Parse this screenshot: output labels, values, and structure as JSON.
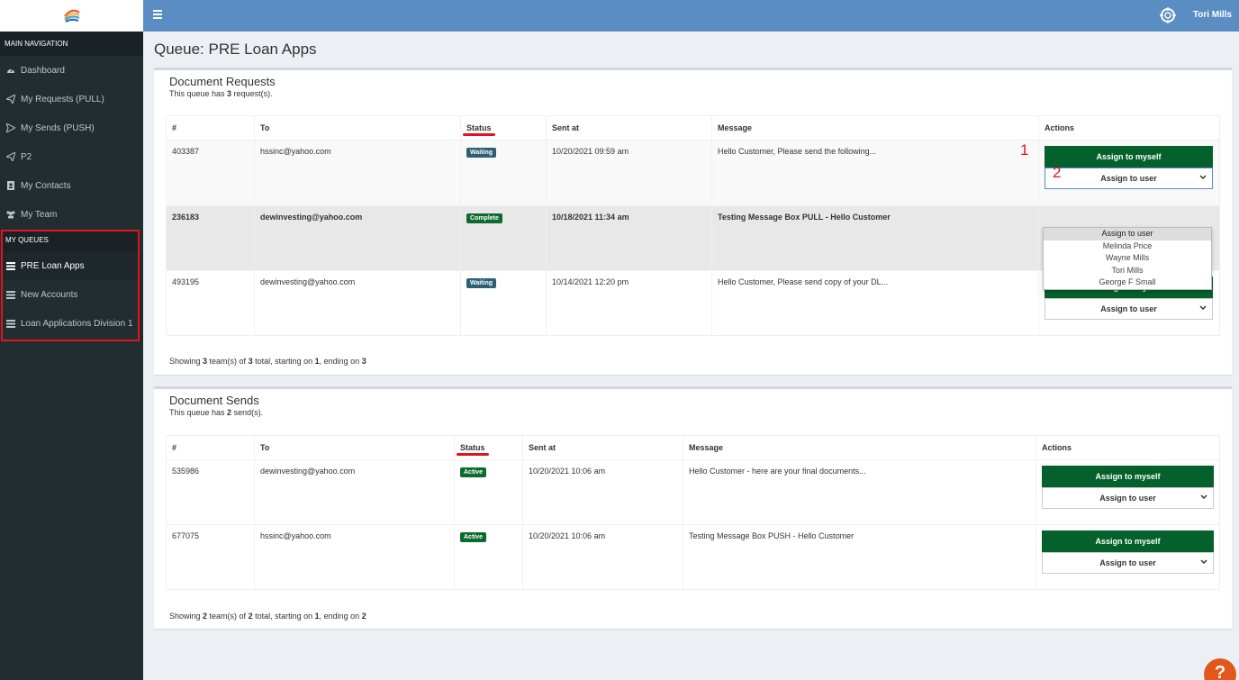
{
  "sidebar": {
    "main_nav_header": "MAIN NAVIGATION",
    "items": [
      {
        "label": "Dashboard",
        "icon": "dashboard-icon"
      },
      {
        "label": "My Requests (PULL)",
        "icon": "paper-plane-icon"
      },
      {
        "label": "My Sends (PUSH)",
        "icon": "paper-plane-down-icon"
      },
      {
        "label": "P2",
        "icon": "paper-plane-icon"
      },
      {
        "label": "My Contacts",
        "icon": "contact-card-icon"
      },
      {
        "label": "My Team",
        "icon": "team-icon"
      }
    ],
    "queues_header": "MY QUEUES",
    "queues": [
      {
        "label": "PRE Loan Apps",
        "icon": "list-icon"
      },
      {
        "label": "New Accounts",
        "icon": "list-icon"
      },
      {
        "label": "Loan Applications Division 1",
        "icon": "list-icon"
      }
    ]
  },
  "topbar": {
    "user": "Tori Mills",
    "help_icon": "lifebuoy-icon"
  },
  "page_title": "Queue: PRE Loan Apps",
  "requests": {
    "title": "Document Requests",
    "subtitle_pre": "This queue has ",
    "subtitle_count": "3",
    "subtitle_post": " request(s).",
    "columns": [
      "#",
      "To",
      "Status",
      "Sent at",
      "Message",
      "Actions"
    ],
    "rows": [
      {
        "id": "403387",
        "to": "hssinc@yahoo.com",
        "status": "Waiting",
        "sent": "10/20/2021 09:59 am",
        "message": "Hello Customer, Please send the following..."
      },
      {
        "id": "236183",
        "to": "dewinvesting@yahoo.com",
        "status": "Complete",
        "sent": "10/18/2021 11:34 am",
        "message": "Testing Message Box PULL - Hello Customer"
      },
      {
        "id": "493195",
        "to": "dewinvesting@yahoo.com",
        "status": "Waiting",
        "sent": "10/14/2021 12:20 pm",
        "message": "Hello Customer, Please send copy of your DL..."
      }
    ],
    "footer": {
      "pre": "Showing ",
      "count": "3",
      "mid1": " team(s) of ",
      "total": "3",
      "mid2": " total, starting on ",
      "start": "1",
      "mid3": ", ending on ",
      "end": "3"
    }
  },
  "sends": {
    "title": "Document Sends",
    "subtitle_pre": "This queue has ",
    "subtitle_count": "2",
    "subtitle_post": " send(s).",
    "columns": [
      "#",
      "To",
      "Status",
      "Sent at",
      "Message",
      "Actions"
    ],
    "rows": [
      {
        "id": "535986",
        "to": "dewinvesting@yahoo.com",
        "status": "Active",
        "sent": "10/20/2021 10:06 am",
        "message": "Hello Customer - here are your final documents..."
      },
      {
        "id": "677075",
        "to": "hssinc@yahoo.com",
        "status": "Active",
        "sent": "10/20/2021 10:06 am",
        "message": "Testing Message Box PUSH - Hello Customer"
      }
    ],
    "footer": {
      "pre": "Showing ",
      "count": "2",
      "mid1": " team(s) of ",
      "total": "2",
      "mid2": " total, starting on ",
      "start": "1",
      "mid3": ", ending on ",
      "end": "2"
    }
  },
  "actions": {
    "assign_self": "Assign to myself",
    "assign_user": "Assign to user"
  },
  "dropdown_options": [
    "Assign to user",
    "Melinda Price",
    "Wayne Mills",
    "Tori Mills",
    "George F Small"
  ],
  "annotations": {
    "one": "1",
    "two": "2"
  },
  "help_fab": "?",
  "colors": {
    "topbar": "#5a8ec3",
    "sidebar": "#222d32",
    "green": "#05612b",
    "highlight_red": "#e0141e"
  }
}
